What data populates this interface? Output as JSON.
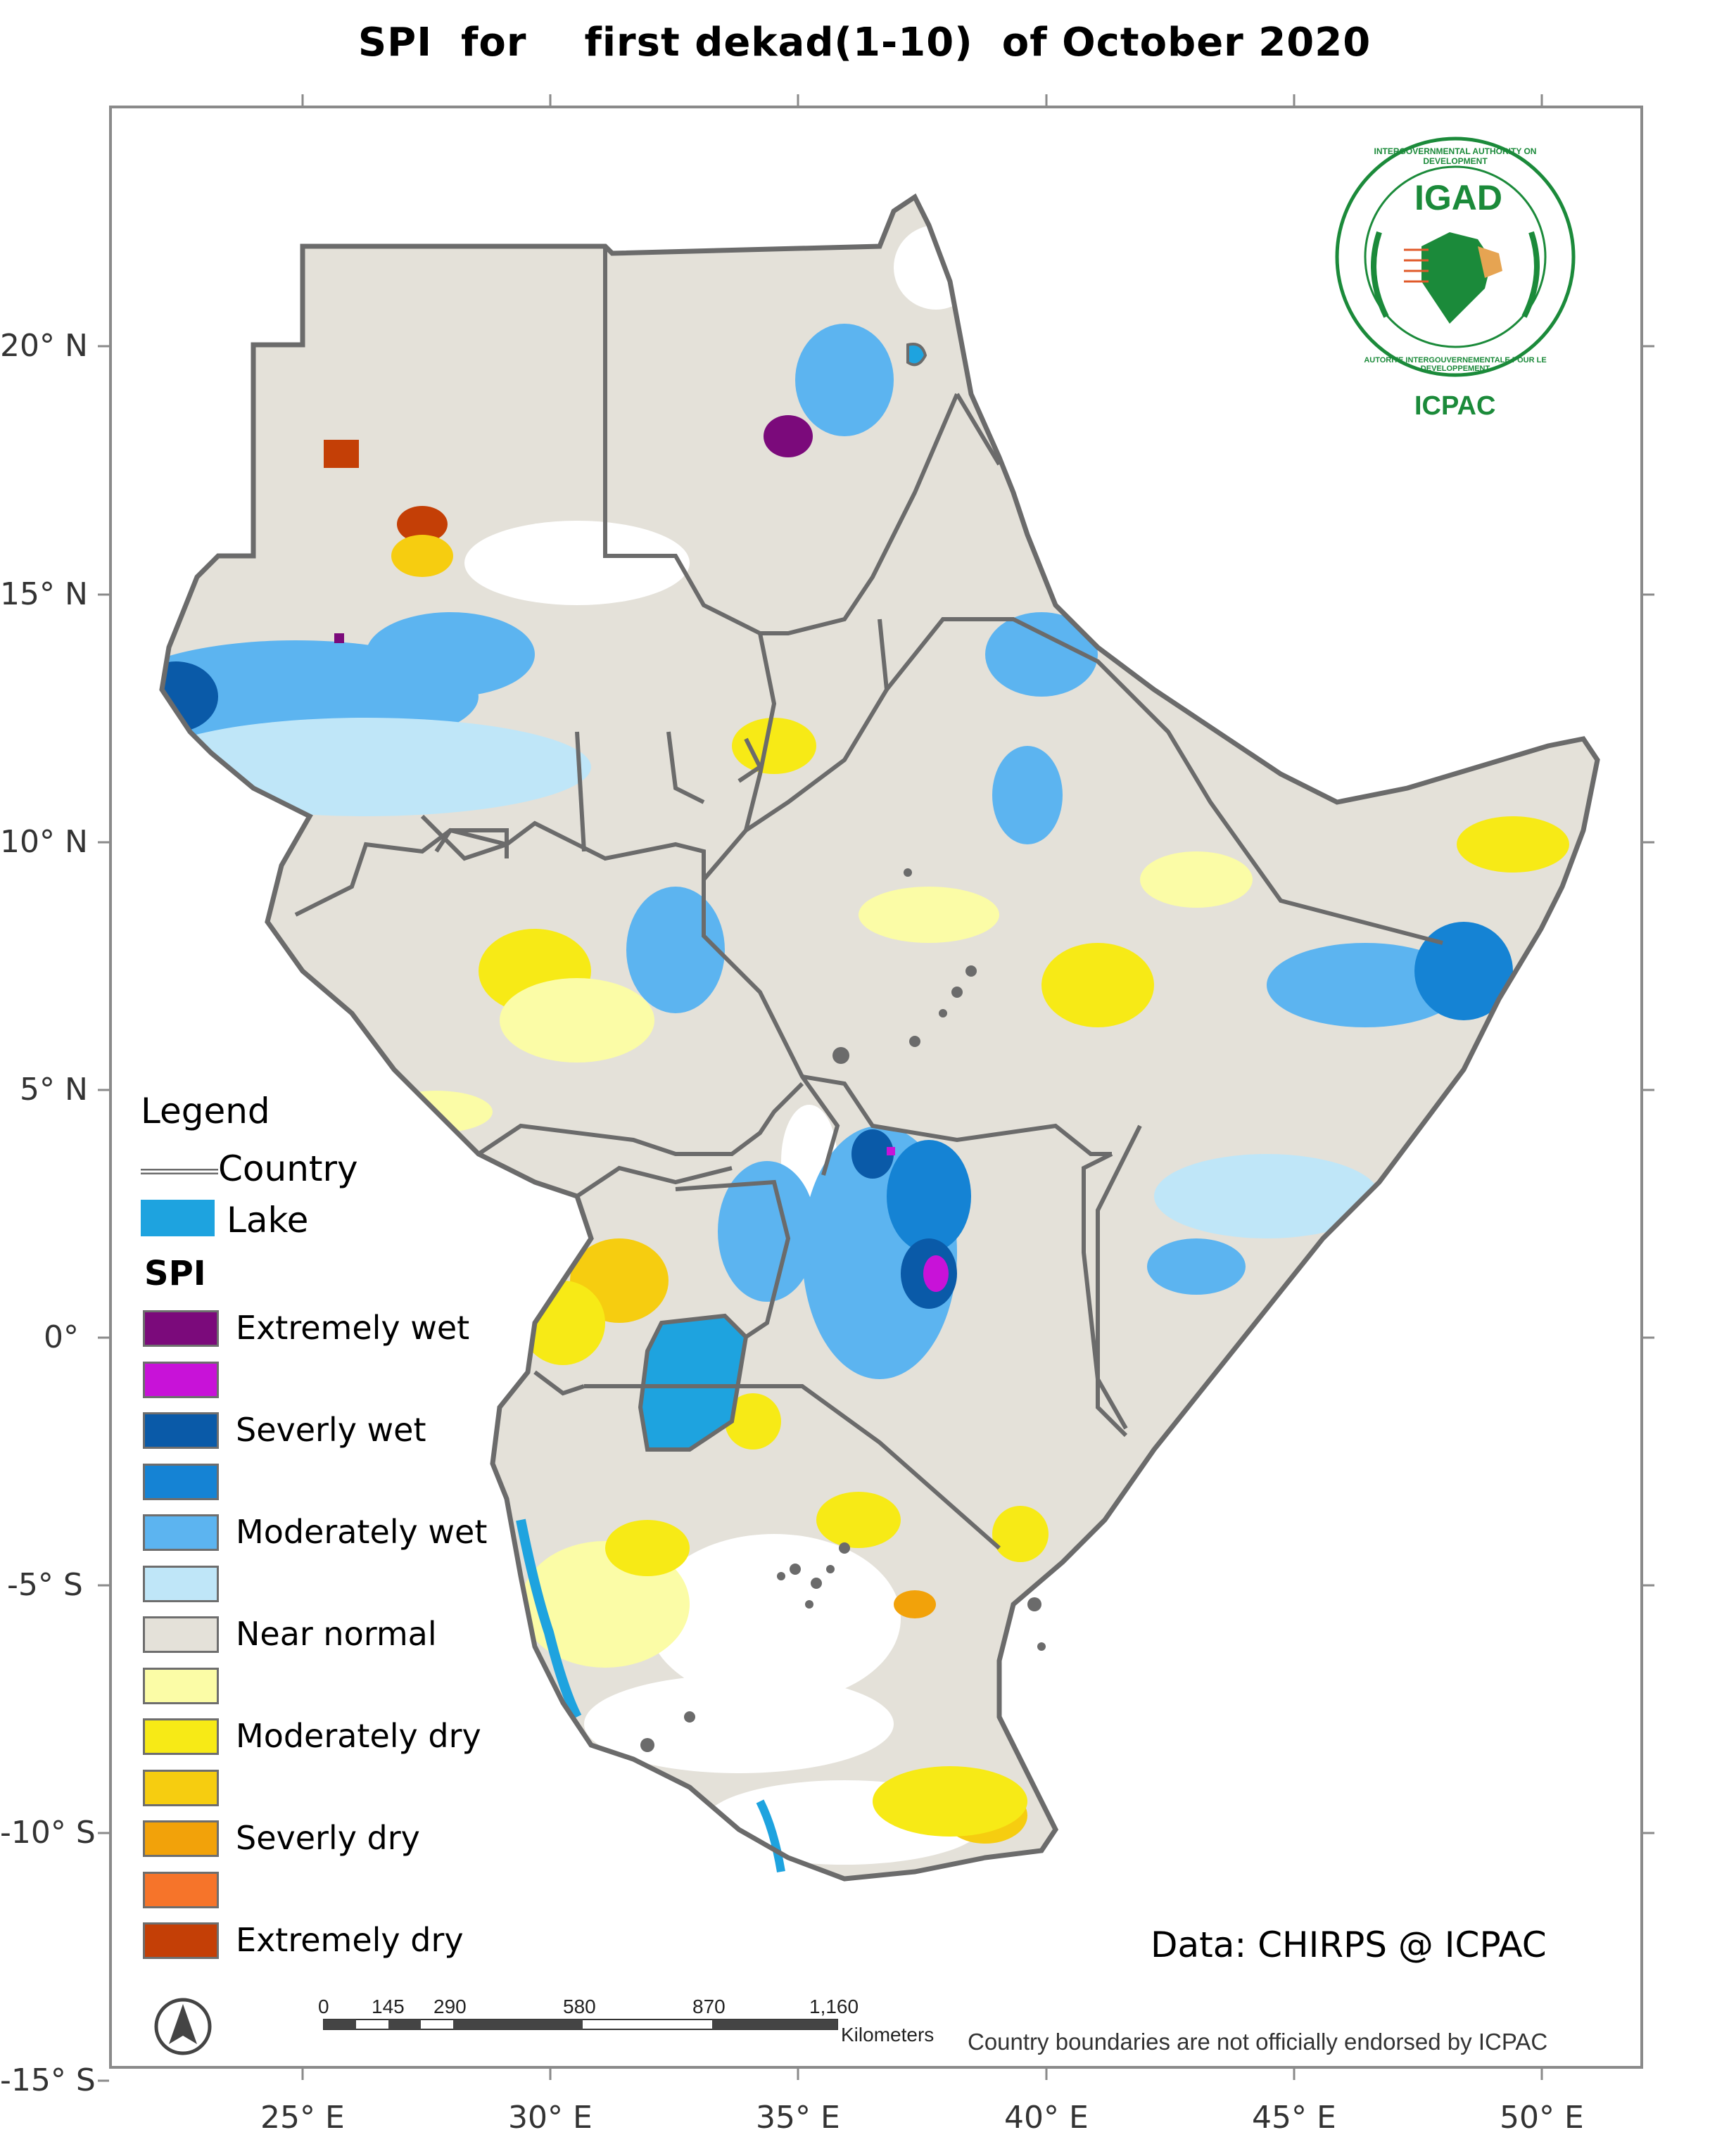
{
  "title": "SPI  for    first dekad(1-10)  of October 2020",
  "axes": {
    "x_ticks": [
      "25° E",
      "30° E",
      "35° E",
      "40° E",
      "45° E",
      "50° E"
    ],
    "y_ticks": [
      "20° N",
      "15° N",
      "10° N",
      "5° N",
      "0°",
      "-5° S",
      "-10° S",
      "-15° S"
    ]
  },
  "legend": {
    "title": "Legend",
    "country_label": "Country",
    "lake_label": "Lake",
    "spi_title": "SPI",
    "classes": [
      {
        "label": "Extremely wet",
        "color": "#7b0a7b"
      },
      {
        "label": "",
        "color": "#c812d8"
      },
      {
        "label": "Severly wet",
        "color": "#0a5aa8"
      },
      {
        "label": "",
        "color": "#1583d4"
      },
      {
        "label": "Moderately wet",
        "color": "#5cb4f0"
      },
      {
        "label": "",
        "color": "#bfe6f8"
      },
      {
        "label": "Near normal",
        "color": "#e4e1d9"
      },
      {
        "label": "",
        "color": "#fbfca6"
      },
      {
        "label": "Moderately dry",
        "color": "#f7ea16"
      },
      {
        "label": "",
        "color": "#f6cd10"
      },
      {
        "label": "Severly dry",
        "color": "#f2a20a"
      },
      {
        "label": "",
        "color": "#f6742a"
      },
      {
        "label": "Extremely dry",
        "color": "#c43f06"
      }
    ],
    "lake_color": "#1ea3df",
    "border_color": "#6b6b6b"
  },
  "logo": {
    "acronym": "IGAD",
    "ring_text_top": "INTERGOVERNMENTAL AUTHORITY ON DEVELOPMENT",
    "ring_text_bottom": "AUTORITE INTERGOUVERNEMENTALE POUR LE DEVELOPPEMENT",
    "subtitle": "ICPAC"
  },
  "credit": "Data: CHIRPS @ ICPAC",
  "scale_bar": {
    "labels": [
      "0",
      "145",
      "290",
      "580",
      "870",
      "1,160"
    ],
    "unit": "Kilometers"
  },
  "disclaimer": "Country boundaries are not officially endorsed by ICPAC",
  "north_arrow": "north-arrow-icon"
}
